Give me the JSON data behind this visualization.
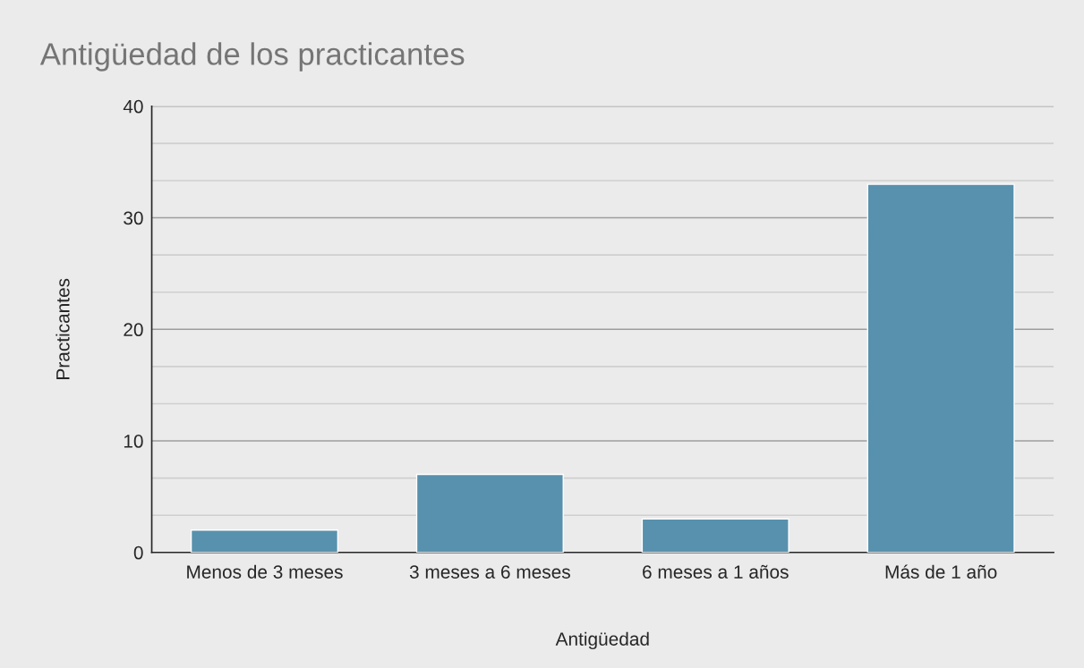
{
  "chart_data": {
    "type": "bar",
    "title": "Antigüedad de los practicantes",
    "xlabel": "Antigüedad",
    "ylabel": "Practicantes",
    "categories": [
      "Menos de 3 meses",
      "3 meses a 6 meses",
      "6 meses a 1 años",
      "Más de 1 año"
    ],
    "values": [
      2,
      7,
      3,
      33
    ],
    "color": "#5891ad",
    "ylim": [
      0,
      40
    ],
    "yticks": [
      0,
      {
        "value": 3.33,
        "label": null
      },
      {
        "value": 6.67,
        "label": null
      },
      10,
      {
        "value": 13.33,
        "label": null
      },
      {
        "value": 16.67,
        "label": null
      },
      20,
      {
        "value": 23.33,
        "label": null
      },
      {
        "value": 26.67,
        "label": null
      },
      30,
      {
        "value": 33.33,
        "label": null
      },
      {
        "value": 36.67,
        "label": null
      },
      40
    ],
    "grid": "y",
    "legend": false
  }
}
